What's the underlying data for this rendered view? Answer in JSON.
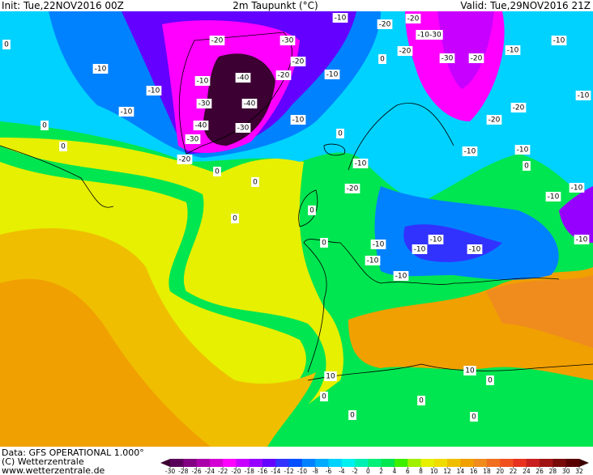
{
  "header": {
    "init": "Init: Tue,22NOV2016 00Z",
    "title": "2m Taupunkt (°C)",
    "valid": "Valid: Tue,29NOV2016 21Z"
  },
  "footer": {
    "data": "Data: GFS OPERATIONAL 1.000°",
    "copyright": "(C) Wetterzentrale",
    "url": "www.wetterzentrale.de"
  },
  "colorbar": {
    "ticks": [
      -30,
      -28,
      -26,
      -24,
      -22,
      -20,
      -18,
      -16,
      -14,
      -12,
      -10,
      -8,
      -6,
      -4,
      -2,
      0,
      2,
      4,
      6,
      8,
      10,
      12,
      14,
      16,
      18,
      20,
      22,
      24,
      26,
      28,
      30,
      32
    ],
    "colors": [
      "#3c0032",
      "#5a005a",
      "#820082",
      "#aa00aa",
      "#d200d2",
      "#ff00ff",
      "#c800ff",
      "#9600ff",
      "#6400ff",
      "#3232ff",
      "#0050ff",
      "#0082ff",
      "#00aaff",
      "#00d2ff",
      "#00f0f0",
      "#00f0b4",
      "#00f078",
      "#00e650",
      "#3cf000",
      "#a0f000",
      "#e6f000",
      "#f0dc00",
      "#f0be00",
      "#f0a000",
      "#f08c1e",
      "#f06e1e",
      "#f0501e",
      "#e6321e",
      "#c81e1e",
      "#a01414",
      "#780a0a",
      "#5a0000",
      "#3c0000"
    ]
  },
  "contour_labels": [
    "-40",
    "-40",
    "-30",
    "-30",
    "-40",
    "-30",
    "-10",
    "-20",
    "-20",
    "-20",
    "-30",
    "-20",
    "-10",
    "-10",
    "-10",
    "-10",
    "-10",
    "-10",
    "-20",
    "-20",
    "-10-30",
    "-30",
    "-20",
    "-10",
    "-10",
    "-20",
    "-20",
    "-10",
    "-10",
    "-10",
    "-10",
    "-10",
    "-10",
    "-20",
    "-10",
    "-10",
    "-10",
    "-10",
    "-10",
    "-10",
    "-10",
    "0",
    "0",
    "0",
    "0",
    "0",
    "0",
    "0",
    "10",
    "10",
    "0",
    "0",
    "0",
    "0",
    "0",
    "0",
    "0",
    "-20",
    "0",
    "0"
  ]
}
